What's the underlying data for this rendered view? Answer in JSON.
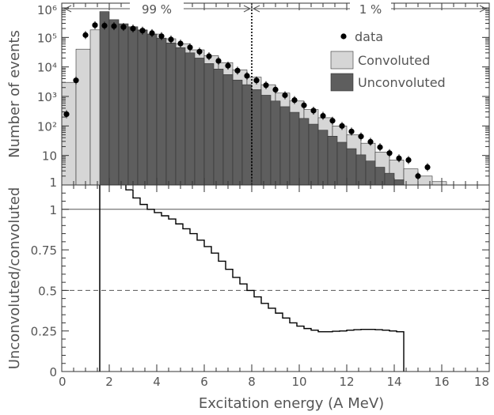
{
  "chart_data": [
    {
      "type": "bar",
      "scale_y": "log",
      "xlim": [
        0,
        18
      ],
      "ylim": [
        1,
        1000000
      ],
      "ylabel": "Number of events",
      "x_ticks": [
        0,
        2,
        4,
        6,
        8,
        10,
        12,
        14,
        16,
        18
      ],
      "y_tick_labels": [
        {
          "value": 1,
          "label": "1"
        },
        {
          "value": 10,
          "label": "10"
        },
        {
          "value": 100,
          "label": "10²"
        },
        {
          "value": 1000,
          "label": "10³"
        },
        {
          "value": 10000,
          "label": "10⁴"
        },
        {
          "value": 100000,
          "label": "10⁵"
        },
        {
          "value": 1000000,
          "label": "10⁶"
        }
      ],
      "annotations": {
        "left_fraction": "99 %",
        "right_fraction": "1 %",
        "divider_x": 8
      },
      "legend": {
        "position": "top-right",
        "entries": [
          {
            "label": "data",
            "marker": "dot",
            "color": "#000000"
          },
          {
            "label": "Convoluted",
            "marker": "box",
            "color": "#d6d6d6"
          },
          {
            "label": "Unconvoluted",
            "marker": "box",
            "color": "#5e5e5e"
          }
        ]
      },
      "series": [
        {
          "name": "Convoluted",
          "style": "histogram",
          "color": "#d6d6d6",
          "bin_width": 0.6,
          "bin_starts": [
            0,
            0.6,
            1.2,
            1.8,
            2.4,
            3.0,
            3.6,
            4.2,
            4.8,
            5.4,
            6.0,
            6.6,
            7.2,
            7.8,
            8.4,
            9.0,
            9.6,
            10.2,
            10.8,
            11.4,
            12.0,
            12.6,
            13.2,
            13.8,
            14.4,
            15.0,
            15.6
          ],
          "values": [
            3000,
            40000,
            180000,
            250000,
            220000,
            180000,
            130000,
            90000,
            60000,
            38000,
            24000,
            14000,
            8000,
            4500,
            2500,
            1300,
            700,
            360,
            190,
            100,
            50,
            26,
            13,
            7,
            3.5,
            2,
            1.3
          ]
        },
        {
          "name": "Unconvoluted",
          "style": "histogram",
          "color": "#5e5e5e",
          "bin_width": 0.4,
          "bin_starts": [
            1.6,
            2.0,
            2.4,
            2.8,
            3.2,
            3.6,
            4.0,
            4.4,
            4.8,
            5.2,
            5.6,
            6.0,
            6.4,
            6.8,
            7.2,
            7.6,
            8.0,
            8.4,
            8.8,
            9.2,
            9.6,
            10.0,
            10.4,
            10.8,
            11.2,
            11.6,
            12.0,
            12.4,
            12.8,
            13.2,
            13.6,
            14.0
          ],
          "values": [
            750000,
            400000,
            290000,
            230000,
            175000,
            130000,
            95000,
            65000,
            45000,
            30000,
            20000,
            13000,
            8500,
            5500,
            3600,
            2500,
            1700,
            1100,
            700,
            450,
            290,
            180,
            115,
            72,
            45,
            28,
            17,
            10.5,
            6.5,
            4,
            2.5,
            1.5
          ]
        },
        {
          "name": "data",
          "style": "points",
          "color": "#000000",
          "x": [
            0.2,
            0.6,
            1.0,
            1.4,
            1.8,
            2.2,
            2.6,
            3.0,
            3.4,
            3.8,
            4.2,
            4.6,
            5.0,
            5.4,
            5.8,
            6.2,
            6.6,
            7.0,
            7.4,
            7.8,
            8.2,
            8.6,
            9.0,
            9.4,
            9.8,
            10.2,
            10.6,
            11.0,
            11.4,
            11.8,
            12.2,
            12.6,
            13.0,
            13.4,
            13.8,
            14.2,
            14.6,
            15.0,
            15.4
          ],
          "y": [
            250,
            3500,
            120000,
            260000,
            250000,
            240000,
            225000,
            200000,
            170000,
            140000,
            110000,
            85000,
            62000,
            46000,
            33000,
            23000,
            16000,
            11000,
            7500,
            5000,
            3500,
            2400,
            1700,
            1100,
            750,
            500,
            330,
            220,
            150,
            100,
            65,
            44,
            29,
            19,
            12,
            8,
            7,
            2,
            4
          ]
        }
      ]
    },
    {
      "type": "line",
      "xlim": [
        0,
        18
      ],
      "ylim": [
        0,
        1.15
      ],
      "xlabel": "Excitation energy (A MeV)",
      "ylabel": "Unconvoluted/convoluted",
      "x_tick_labels": [
        "0",
        "2",
        "4",
        "6",
        "8",
        "10",
        "12",
        "14",
        "16",
        "18"
      ],
      "y_ticks": [
        0,
        0.25,
        0.5,
        0.75,
        1
      ],
      "y_tick_labels": [
        "0",
        "0.25",
        "0.5",
        "0.75",
        "1"
      ],
      "reference_lines": [
        {
          "y": 1,
          "style": "solid"
        },
        {
          "y": 0.5,
          "style": "dashed"
        }
      ],
      "vertical_line_x": 1.6,
      "series": [
        {
          "style": "step",
          "color": "#000000",
          "bin_width": 0.3,
          "bin_starts": [
            2.7,
            3.0,
            3.3,
            3.6,
            3.9,
            4.2,
            4.5,
            4.8,
            5.1,
            5.4,
            5.7,
            6.0,
            6.3,
            6.6,
            6.9,
            7.2,
            7.5,
            7.8,
            8.1,
            8.4,
            8.7,
            9.0,
            9.3,
            9.6,
            9.9,
            10.2,
            10.5,
            10.8,
            11.1,
            11.4,
            11.7,
            12.0,
            12.3,
            12.6,
            12.9,
            13.2,
            13.5,
            13.8,
            14.1
          ],
          "values": [
            1.12,
            1.07,
            1.03,
            1.0,
            0.98,
            0.96,
            0.94,
            0.91,
            0.88,
            0.85,
            0.81,
            0.77,
            0.73,
            0.68,
            0.63,
            0.58,
            0.54,
            0.5,
            0.46,
            0.42,
            0.39,
            0.36,
            0.33,
            0.3,
            0.28,
            0.265,
            0.255,
            0.245,
            0.245,
            0.248,
            0.25,
            0.255,
            0.258,
            0.26,
            0.26,
            0.258,
            0.255,
            0.25,
            0.245
          ]
        }
      ]
    }
  ]
}
